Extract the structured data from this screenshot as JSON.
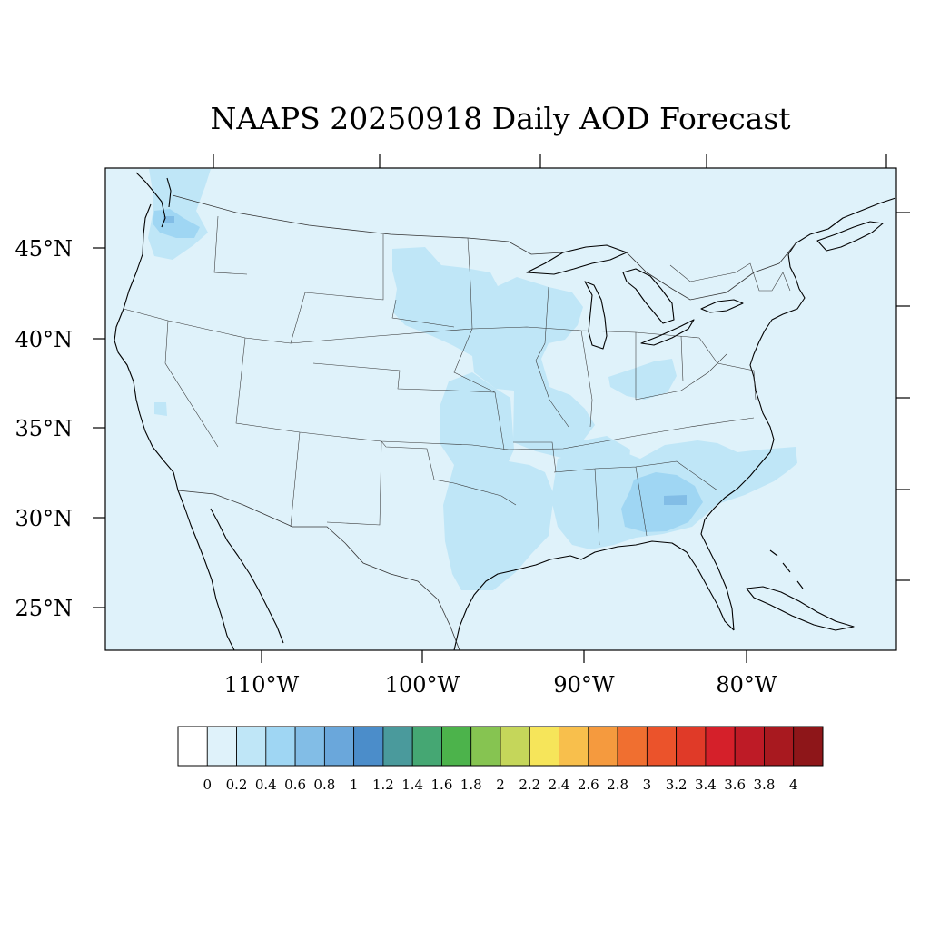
{
  "title": "NAAPS 20250918 Daily AOD Forecast",
  "map": {
    "projection": "Lambert conformal conic (CONUS)",
    "longitude_labels": [
      "110°W",
      "100°W",
      "90°W",
      "80°W"
    ],
    "latitude_labels": [
      "45°N",
      "40°N",
      "35°N",
      "30°N",
      "25°N"
    ],
    "background_level_color": "#dff2fa"
  },
  "colorbar": {
    "tick_labels": [
      "0",
      "0.2",
      "0.4",
      "0.6",
      "0.8",
      "1",
      "1.2",
      "1.4",
      "1.6",
      "1.8",
      "2",
      "2.2",
      "2.4",
      "2.6",
      "2.8",
      "3",
      "3.2",
      "3.4",
      "3.6",
      "3.8",
      "4"
    ],
    "colors": [
      "#ffffff",
      "#dff2fa",
      "#bfe6f7",
      "#9fd6f3",
      "#82bde6",
      "#6aa7db",
      "#4b8dca",
      "#4a9a9c",
      "#45a773",
      "#4cb34b",
      "#86c451",
      "#c5d65a",
      "#f6e55a",
      "#f8bf4c",
      "#f59a3e",
      "#f06f30",
      "#eb532b",
      "#e03a28",
      "#d5202a",
      "#be1b26",
      "#a8191f",
      "#8e1619"
    ]
  },
  "aod_field": {
    "variable": "Aerosol Optical Depth",
    "date": "20250918",
    "domain_level": "0-0.2",
    "regions": [
      {
        "area": "Washington / Oregon smoke",
        "level": "0.2-0.4"
      },
      {
        "area": "Puget Sound core",
        "level": "0.4-0.6"
      },
      {
        "area": "Northern Plains (ND/SD/NE)",
        "level": "0.2-0.4"
      },
      {
        "area": "Central Plains to Texas",
        "level": "0.2-0.4"
      },
      {
        "area": "Upper Midwest (MN/WI/IA/MO)",
        "level": "0.2-0.4"
      },
      {
        "area": "Ohio Valley",
        "level": "0.2-0.4"
      },
      {
        "area": "Southeast (AL/GA/SC)",
        "level": "0.2-0.4"
      },
      {
        "area": "Georgia / South Carolina core",
        "level": "0.4-0.6"
      },
      {
        "area": "Central Georgia peak",
        "level": "0.6-0.8"
      },
      {
        "area": "Atlantic off Carolinas",
        "level": "0.2-0.4"
      }
    ]
  }
}
